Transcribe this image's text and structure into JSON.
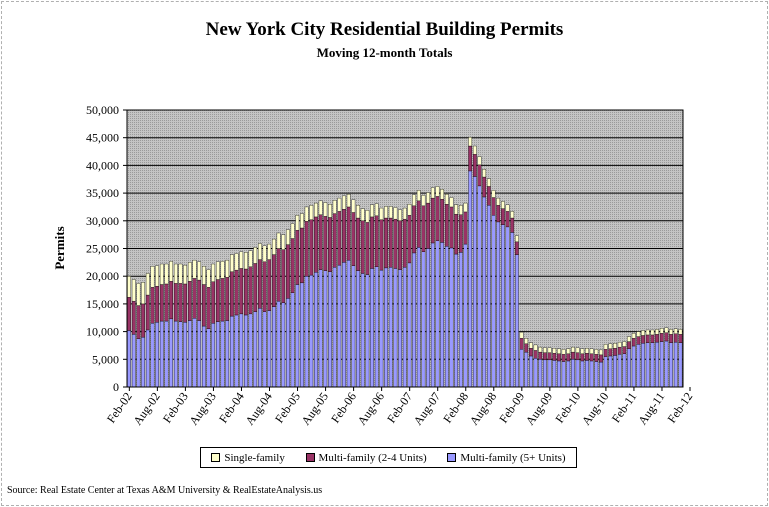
{
  "chart_data": {
    "type": "bar",
    "stacked": true,
    "title": "New York City Residential Building Permits",
    "subtitle": "Moving 12-month Totals",
    "ylabel": "Permits",
    "xlabel": "",
    "ylim": [
      0,
      50000
    ],
    "yticks": [
      "0",
      "5,000",
      "10,000",
      "15,000",
      "20,000",
      "25,000",
      "30,000",
      "35,000",
      "40,000",
      "45,000",
      "50,000"
    ],
    "xtick_labels": [
      "Feb-02",
      "Aug-02",
      "Feb-03",
      "Aug-03",
      "Feb-04",
      "Aug-04",
      "Feb-05",
      "Aug-05",
      "Feb-06",
      "Aug-06",
      "Feb-07",
      "Aug-07",
      "Feb-08",
      "Aug-08",
      "Feb-09",
      "Aug-09",
      "Feb-10",
      "Aug-10",
      "Feb-11",
      "Aug-11",
      "Feb-12"
    ],
    "grid": true,
    "legend_position": "bottom",
    "series": [
      {
        "name": "Multi-family (5+ Units)",
        "color": "#9999ff",
        "values": [
          10200,
          9500,
          8700,
          9000,
          10300,
          11500,
          11700,
          11900,
          11900,
          12300,
          11900,
          11800,
          11700,
          12000,
          12400,
          12000,
          11000,
          10500,
          11500,
          11800,
          11900,
          12000,
          12800,
          13000,
          13200,
          13000,
          13200,
          13600,
          14200,
          13600,
          13800,
          14500,
          15500,
          15200,
          16000,
          17000,
          18500,
          18800,
          20000,
          20200,
          20700,
          21200,
          21000,
          20800,
          21600,
          22000,
          22500,
          22900,
          21900,
          21000,
          20500,
          20300,
          21400,
          21700,
          21100,
          21500,
          21600,
          21400,
          21200,
          21600,
          22400,
          24200,
          25200,
          24400,
          25000,
          26000,
          26400,
          26100,
          25400,
          25100,
          24000,
          24300,
          25800,
          39000,
          38000,
          36300,
          34300,
          32800,
          31000,
          29800,
          29300,
          28900,
          27900,
          23900,
          6800,
          6300,
          5600,
          5200,
          5000,
          4900,
          4900,
          4800,
          4700,
          4600,
          4700,
          5000,
          4900,
          4700,
          4800,
          4700,
          4600,
          4500,
          5500,
          5600,
          5700,
          5900,
          6000,
          6900,
          7400,
          7700,
          7900,
          8000,
          8000,
          8100,
          8200,
          8300,
          8000,
          8100,
          8000
        ],
        "sum_note": "stacked base series"
      },
      {
        "name": "Multi-family (2-4 Units)",
        "color": "#993366",
        "values": [
          6000,
          6000,
          6000,
          6000,
          6300,
          6500,
          6500,
          6600,
          6700,
          6800,
          6800,
          6900,
          6900,
          7100,
          7200,
          7300,
          7500,
          7500,
          7500,
          7600,
          7700,
          7800,
          8000,
          8100,
          8200,
          8300,
          8500,
          8700,
          8800,
          9000,
          9200,
          9400,
          9500,
          9600,
          9700,
          9800,
          9800,
          9900,
          9900,
          10000,
          10000,
          9900,
          9800,
          9800,
          9700,
          9700,
          9600,
          9600,
          9600,
          9500,
          9500,
          9400,
          9300,
          9200,
          9100,
          9000,
          8900,
          8900,
          8800,
          8700,
          8600,
          8500,
          8400,
          8300,
          8200,
          8100,
          8000,
          7800,
          7600,
          7400,
          7200,
          6800,
          5800,
          4500,
          4000,
          3800,
          3600,
          3400,
          3200,
          3000,
          2900,
          2800,
          2600,
          2300,
          2000,
          1500,
          1400,
          1400,
          1300,
          1300,
          1300,
          1300,
          1300,
          1300,
          1300,
          1300,
          1300,
          1300,
          1300,
          1300,
          1300,
          1300,
          1300,
          1300,
          1300,
          1300,
          1300,
          1300,
          1400,
          1400,
          1400,
          1400,
          1400,
          1400,
          1500,
          1500,
          1500,
          1500,
          1500
        ]
      },
      {
        "name": "Single-family",
        "color": "#ffffcc",
        "values": [
          3800,
          3900,
          4000,
          3900,
          3900,
          3800,
          3700,
          3700,
          3600,
          3600,
          3500,
          3500,
          3400,
          3400,
          3300,
          3300,
          3300,
          3200,
          3200,
          3200,
          3100,
          3100,
          3100,
          3000,
          3000,
          3000,
          2900,
          2900,
          2900,
          2900,
          2800,
          2800,
          2800,
          2700,
          2700,
          2700,
          2700,
          2600,
          2600,
          2600,
          2500,
          2500,
          2500,
          2400,
          2400,
          2400,
          2400,
          2300,
          2300,
          2300,
          2200,
          2200,
          2200,
          2200,
          2100,
          2100,
          2100,
          2100,
          2000,
          2000,
          2000,
          2000,
          1900,
          1900,
          1900,
          1900,
          1800,
          1800,
          1800,
          1700,
          1700,
          1700,
          1600,
          1600,
          1500,
          1500,
          1400,
          1400,
          1300,
          1300,
          1300,
          1200,
          1200,
          1100,
          1100,
          1000,
          1000,
          1000,
          900,
          900,
          900,
          900,
          900,
          900,
          900,
          900,
          900,
          900,
          900,
          900,
          900,
          900,
          900,
          900,
          900,
          900,
          900,
          900,
          900,
          900,
          900,
          900,
          900,
          900,
          900,
          900,
          900,
          900,
          900
        ]
      }
    ]
  },
  "legend": {
    "items": [
      {
        "label": "Single-family",
        "color": "#ffffcc"
      },
      {
        "label": "Multi-family (2-4 Units)",
        "color": "#993366"
      },
      {
        "label": "Multi-family (5+ Units)",
        "color": "#9999ff"
      }
    ]
  },
  "source": "Source: Real Estate Center at Texas A&M University & RealEstateAnalysis.us"
}
